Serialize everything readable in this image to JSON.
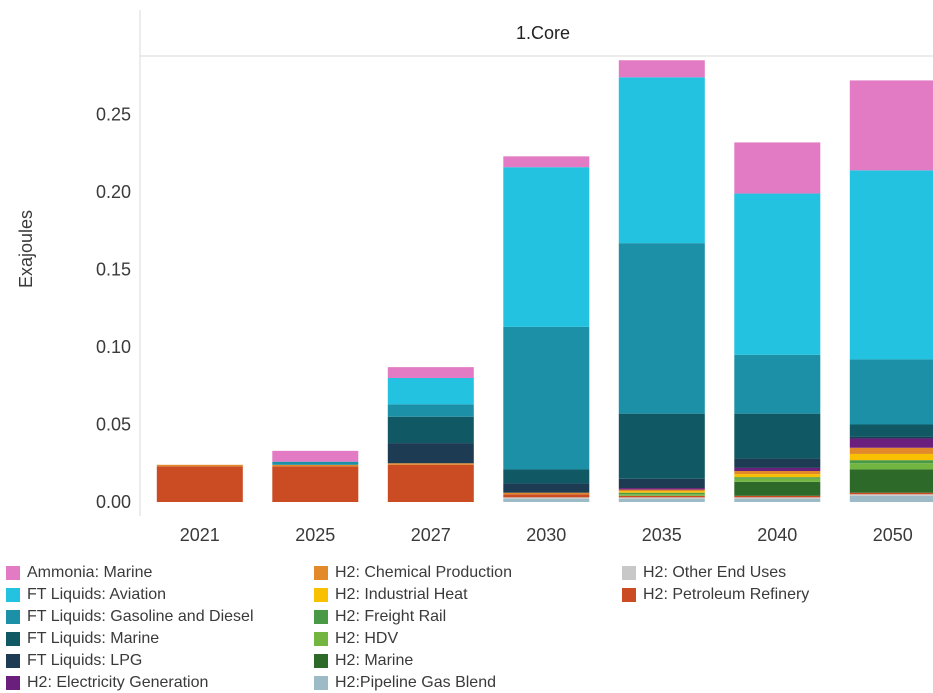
{
  "chart_data": {
    "type": "bar",
    "stacked": true,
    "panel_title": "1.Core",
    "ylabel": "Exajoules",
    "xlabel": "",
    "ylim": [
      -0.008,
      0.32
    ],
    "yticks": [
      0.0,
      0.05,
      0.1,
      0.15,
      0.2,
      0.25
    ],
    "ytick_labels": [
      "0.00",
      "0.05",
      "0.10",
      "0.15",
      "0.20",
      "0.25"
    ],
    "grid": false,
    "legend_position": "bottom",
    "categories": [
      "2021",
      "2025",
      "2027",
      "2030",
      "2035",
      "2040",
      "2050"
    ],
    "series": [
      {
        "name": "H2:Pipeline Gas Blend",
        "color": "#9dbac7",
        "values": [
          0,
          0,
          0,
          0.002,
          0.002,
          0.002,
          0.004
        ]
      },
      {
        "name": "H2: Other End Uses",
        "color": "#c8c8c8",
        "values": [
          0,
          0,
          0,
          0.001,
          0.001,
          0.001,
          0.001
        ]
      },
      {
        "name": "H2: Petroleum Refinery",
        "color": "#cb4b23",
        "values": [
          0.023,
          0.023,
          0.024,
          0.002,
          0.001,
          0.001,
          0.001
        ]
      },
      {
        "name": "H2: Marine",
        "color": "#2d6a2a",
        "values": [
          0,
          0,
          0,
          0,
          0,
          0.009,
          0.015
        ]
      },
      {
        "name": "H2: HDV",
        "color": "#73b541",
        "values": [
          0,
          0,
          0,
          0,
          0.001,
          0.002,
          0.004
        ]
      },
      {
        "name": "H2: Freight Rail",
        "color": "#4a9a45",
        "values": [
          0,
          0,
          0,
          0,
          0.001,
          0.001,
          0.002
        ]
      },
      {
        "name": "H2: Industrial Heat",
        "color": "#f9c000",
        "values": [
          0,
          0,
          0,
          0,
          0.001,
          0.002,
          0.004
        ]
      },
      {
        "name": "H2: Chemical Production",
        "color": "#e28a2a",
        "values": [
          0.001,
          0.001,
          0.001,
          0.001,
          0.001,
          0.002,
          0.004
        ]
      },
      {
        "name": "H2: Electricity Generation",
        "color": "#6b1f7c",
        "values": [
          0,
          0,
          0,
          0,
          0.001,
          0.002,
          0.006
        ]
      },
      {
        "name": "FT Liquids: LPG",
        "color": "#1d3c54",
        "values": [
          0,
          0,
          0.013,
          0.006,
          0.006,
          0.006,
          0.001
        ]
      },
      {
        "name": "FT Liquids: Marine",
        "color": "#0f5864",
        "values": [
          0,
          0,
          0.017,
          0.009,
          0.042,
          0.029,
          0.008
        ]
      },
      {
        "name": "FT Liquids: Gasoline and Diesel",
        "color": "#1c90a6",
        "values": [
          0,
          0.002,
          0.008,
          0.092,
          0.11,
          0.038,
          0.042
        ]
      },
      {
        "name": "FT Liquids: Aviation",
        "color": "#22c2e0",
        "values": [
          0,
          0,
          0.017,
          0.103,
          0.107,
          0.104,
          0.122
        ]
      },
      {
        "name": "Ammonia: Marine",
        "color": "#e27bc4",
        "values": [
          0,
          0.007,
          0.007,
          0.007,
          0.011,
          0.033,
          0.058
        ]
      }
    ]
  },
  "legend": {
    "columns": [
      [
        "Ammonia: Marine",
        "FT Liquids: Aviation",
        "FT Liquids: Gasoline and Diesel",
        "FT Liquids: Marine",
        "FT Liquids: LPG",
        "H2: Electricity Generation"
      ],
      [
        "H2: Chemical Production",
        "H2: Industrial Heat",
        "H2: Freight Rail",
        "H2: HDV",
        "H2: Marine",
        "H2:Pipeline Gas Blend"
      ],
      [
        "H2: Other End Uses",
        "H2: Petroleum Refinery"
      ]
    ]
  }
}
